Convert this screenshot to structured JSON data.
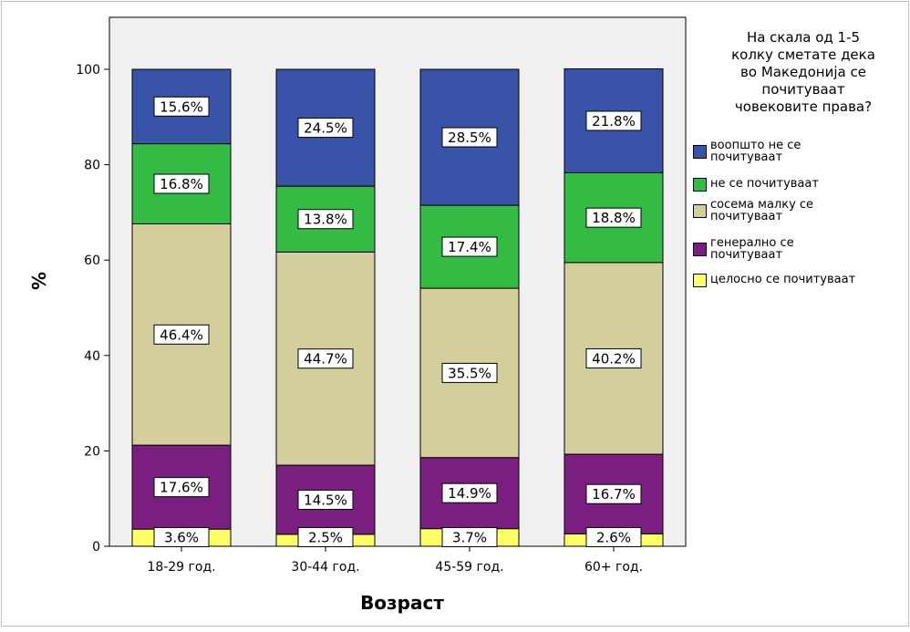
{
  "chart_data": {
    "type": "bar",
    "stacked": true,
    "percent": true,
    "categories": [
      "18-29 год.",
      "30-44 год.",
      "45-59 год.",
      "60+ год."
    ],
    "series": [
      {
        "name": "целосно се почитуваат",
        "color": "#ffff66",
        "values": [
          3.6,
          2.5,
          3.7,
          2.6
        ]
      },
      {
        "name": "генерално се почитуваат",
        "color": "#7a1f7f",
        "values": [
          17.6,
          14.5,
          14.9,
          16.7
        ]
      },
      {
        "name": "сосема малку се почитуваат",
        "color": "#d3ce9b",
        "values": [
          46.4,
          44.7,
          35.5,
          40.2
        ]
      },
      {
        "name": "не се почитуваат",
        "color": "#33bb44",
        "values": [
          16.8,
          13.8,
          17.4,
          18.8
        ]
      },
      {
        "name": "воопшто не се почитуваат",
        "color": "#3953a8",
        "values": [
          15.6,
          24.5,
          28.5,
          21.8
        ]
      }
    ],
    "data_labels": [
      [
        "3.6%",
        "2.5%",
        "3.7%",
        "2.6%"
      ],
      [
        "17.6%",
        "14.5%",
        "14.9%",
        "16.7%"
      ],
      [
        "46.4%",
        "44.7%",
        "35.5%",
        "40.2%"
      ],
      [
        "16.8%",
        "13.8%",
        "17.4%",
        "18.8%"
      ],
      [
        "15.6%",
        "24.5%",
        "28.5%",
        "21.8%"
      ]
    ],
    "xlabel": "Возраст",
    "ylabel": "%",
    "ylim": [
      0,
      100
    ],
    "yticks": [
      "0",
      "20",
      "40",
      "60",
      "80",
      "100"
    ],
    "grid": false,
    "plot_background": "#f0f0f0",
    "legend": {
      "placement": "right",
      "title_lines": [
        "На скала од 1-5",
        "колку сметате дека",
        "во Македонија се",
        "почитуваат",
        "човековите права?"
      ],
      "items": [
        {
          "lines": [
            "воопшто не се",
            "почитуваат"
          ],
          "color": "#3953a8"
        },
        {
          "lines": [
            "не се почитуваат"
          ],
          "color": "#33bb44"
        },
        {
          "lines": [
            "сосема малку се",
            "почитуваат"
          ],
          "color": "#d3ce9b"
        },
        {
          "lines": [
            "генерално се",
            "почитуваат"
          ],
          "color": "#7a1f7f"
        },
        {
          "lines": [
            "целосно се почитуваат"
          ],
          "color": "#ffff66"
        }
      ]
    }
  }
}
